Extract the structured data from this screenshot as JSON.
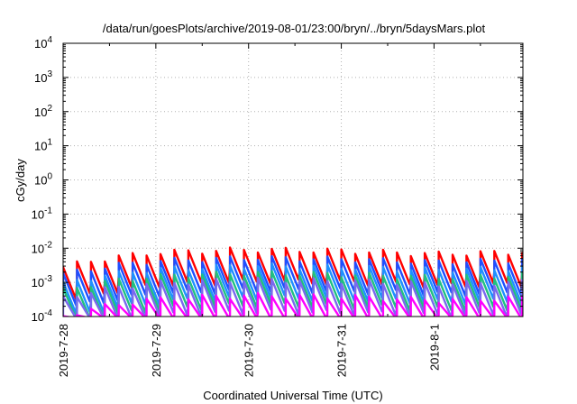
{
  "chart_data": {
    "type": "line",
    "title": "/data/run/goesPlots/archive/2019-08-01/23:00/bryn/../bryn/5daysMars.plot",
    "xlabel": "Coordinated Universal Time (UTC)",
    "ylabel": "cGy/day",
    "log_y": true,
    "ylim": [
      0.0001,
      10000
    ],
    "xlim": [
      "2019-07-28T00:00",
      "2019-08-01T23:00"
    ],
    "grid": true,
    "ytick_exponents": [
      "-4",
      "-3",
      "-2",
      "-1",
      "0",
      "1",
      "2",
      "3",
      "4"
    ],
    "ytick_base": "10",
    "xticks": [
      {
        "label": "2019-7-28",
        "date": "2019-07-28"
      },
      {
        "label": "2019-7-29",
        "date": "2019-07-29"
      },
      {
        "label": "2019-7-30",
        "date": "2019-07-30"
      },
      {
        "label": "2019-7-31",
        "date": "2019-07-31"
      },
      {
        "label": "2019-8-1",
        "date": "2019-08-01"
      }
    ],
    "sawtooth_period_hours": 3.6,
    "series": [
      {
        "color": "#ff0000",
        "values": [
          0.0028,
          0.0075,
          0.0092,
          0.0084,
          0.0068,
          0.0078
        ]
      },
      {
        "color": "#1f4fff",
        "values": [
          0.0017,
          0.0042,
          0.0052,
          0.0048,
          0.0039,
          0.0045
        ]
      },
      {
        "color": "#1e90ff",
        "values": [
          0.0009,
          0.0024,
          0.0031,
          0.0028,
          0.0023,
          0.0026
        ]
      },
      {
        "color": "#20c080",
        "values": [
          0.0006,
          0.0015,
          0.0019,
          0.0017,
          0.0014,
          0.0016
        ]
      },
      {
        "color": "#7b68ee",
        "values": [
          0.00035,
          0.00095,
          0.0012,
          0.0011,
          0.0009,
          0.001
        ]
      },
      {
        "color": "#ff00ff",
        "values": [
          0.0001,
          0.00032,
          0.00042,
          0.00038,
          0.0003,
          0.00035
        ]
      }
    ]
  }
}
